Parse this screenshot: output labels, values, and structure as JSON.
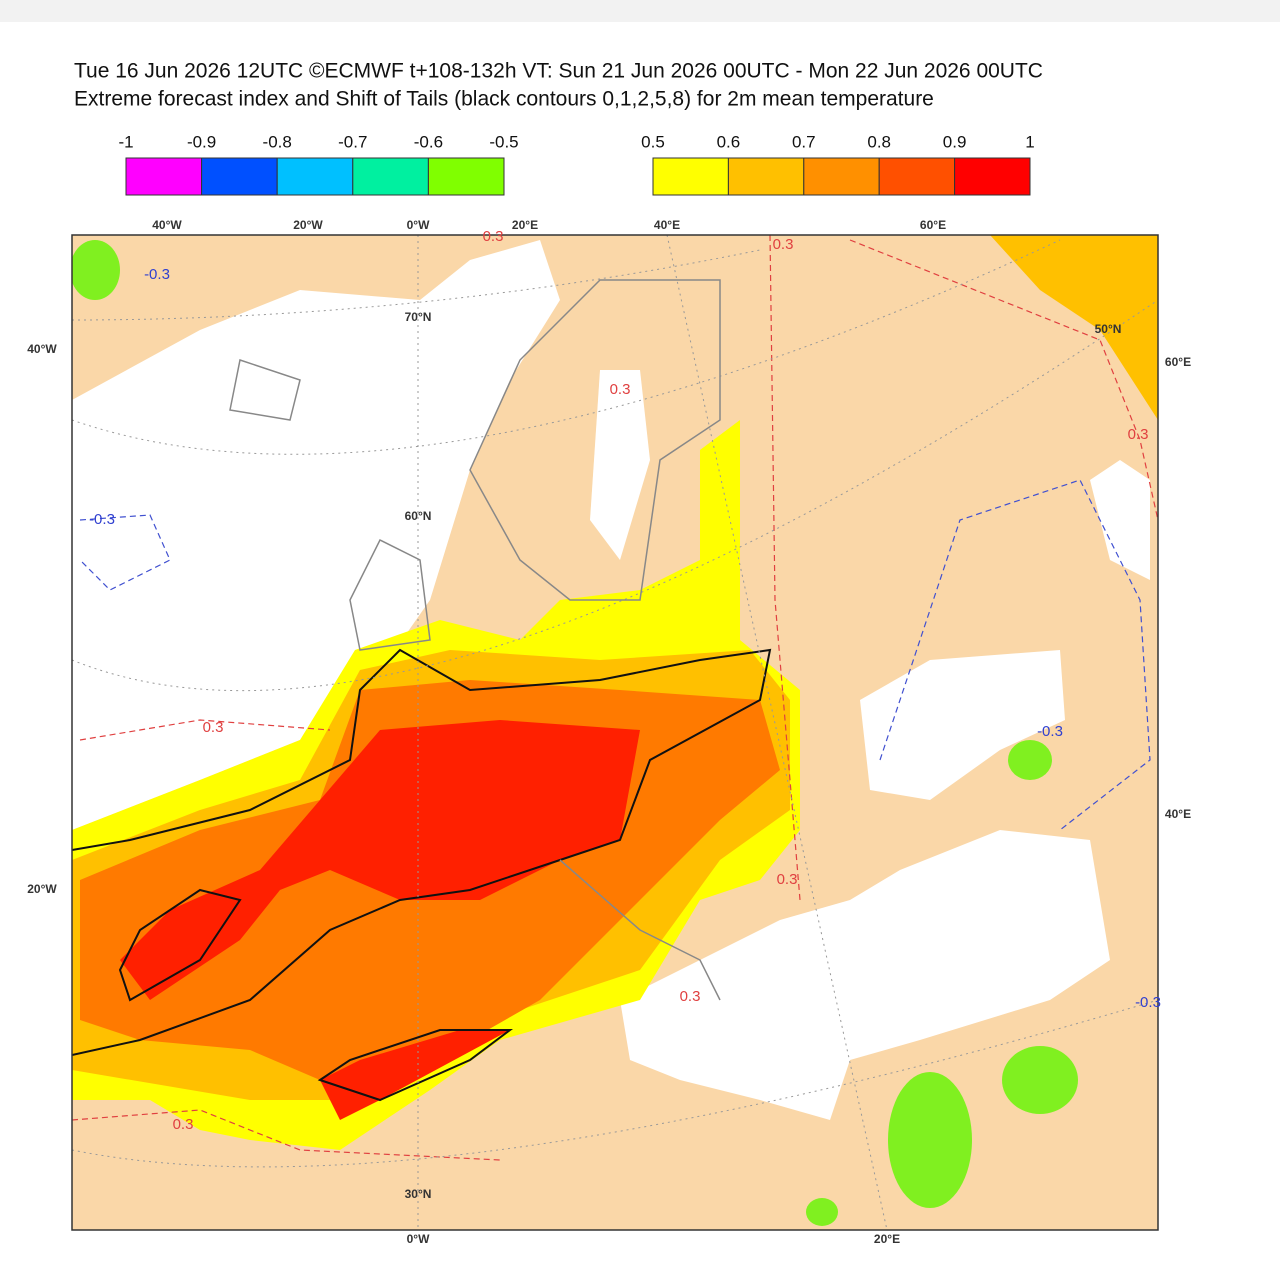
{
  "header": {
    "line1": "Tue 16 Jun 2026 12UTC ©ECMWF t+108-132h  VT: Sun 21 Jun 2026 00UTC - Mon 22 Jun 2026 00UTC",
    "line2": "Extreme forecast index and Shift of Tails (black contours 0,1,2,5,8) for 2m mean temperature"
  },
  "legend": {
    "negative": {
      "ticks": [
        -1,
        -0.9,
        -0.8,
        -0.7,
        -0.6,
        -0.5
      ],
      "colors": [
        "#ff00ff",
        "#0050ff",
        "#00c0ff",
        "#00f0a0",
        "#80ff00"
      ]
    },
    "positive": {
      "ticks": [
        0.5,
        0.6,
        0.7,
        0.8,
        0.9,
        1
      ],
      "colors": [
        "#ffff00",
        "#ffc000",
        "#ff9000",
        "#ff5000",
        "#ff0000"
      ]
    }
  },
  "map": {
    "top_labels": [
      "40°W",
      "20°W",
      "0°W",
      "20°E",
      "40°E",
      "60°E"
    ],
    "left_labels": [
      "40°W",
      "20°W"
    ],
    "right_labels": [
      "60°E",
      "40°E"
    ],
    "bottom_labels": [
      "0°W",
      "20°E"
    ],
    "lat_labels": [
      "70°N",
      "60°N",
      "50°N",
      "30°N"
    ],
    "positive_contour_labels": [
      "0.3",
      "0.3",
      "0.3",
      "0.3",
      "0.3",
      "0.3",
      "0.3",
      "0.3"
    ],
    "negative_contour_labels": [
      "-0.3",
      "-0.3",
      "-0.3",
      "-0.3"
    ]
  }
}
